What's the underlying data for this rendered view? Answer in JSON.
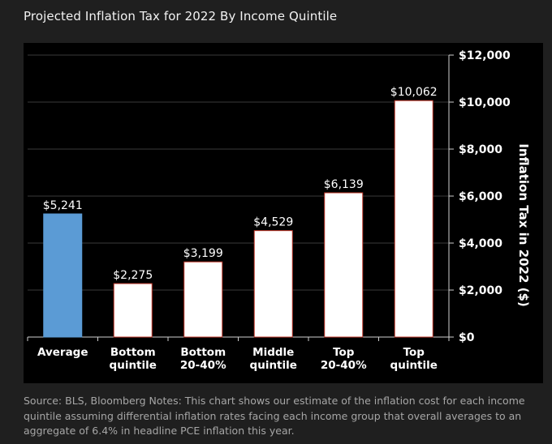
{
  "header": {
    "title": "Projected Inflation Tax for 2022 By Income Quintile"
  },
  "footer": {
    "source": "Source: BLS, Bloomberg Notes: This chart shows our estimate of the inflation cost for each income quintile assuming differential inflation rates facing each income group that overall averages to an aggregate of 6.4% in headline PCE inflation this year."
  },
  "chart_data": {
    "type": "bar",
    "categories": [
      [
        "Average"
      ],
      [
        "Bottom",
        "quintile"
      ],
      [
        "Bottom",
        "20-40%"
      ],
      [
        "Middle",
        "quintile"
      ],
      [
        "Top",
        "20-40%"
      ],
      [
        "Top",
        "quintile"
      ]
    ],
    "values": [
      5241,
      2275,
      3199,
      4529,
      6139,
      10062
    ],
    "data_labels": [
      "$5,241",
      "$2,275",
      "$3,199",
      "$4,529",
      "$6,139",
      "$10,062"
    ],
    "bar_colors": [
      "#5b9bd5",
      "#ffffff",
      "#ffffff",
      "#ffffff",
      "#ffffff",
      "#ffffff"
    ],
    "bar_edge_color": "#c0392b",
    "ylabel": "Inflation Tax in 2022 ($)",
    "ylim": [
      0,
      12000
    ],
    "yticks": [
      0,
      2000,
      4000,
      6000,
      8000,
      10000,
      12000
    ],
    "ytick_labels": [
      "$0",
      "$2,000",
      "$4,000",
      "$6,000",
      "$8,000",
      "$10,000",
      "$12,000"
    ],
    "y_axis_side": "right",
    "grid": true,
    "background": "#000000"
  }
}
